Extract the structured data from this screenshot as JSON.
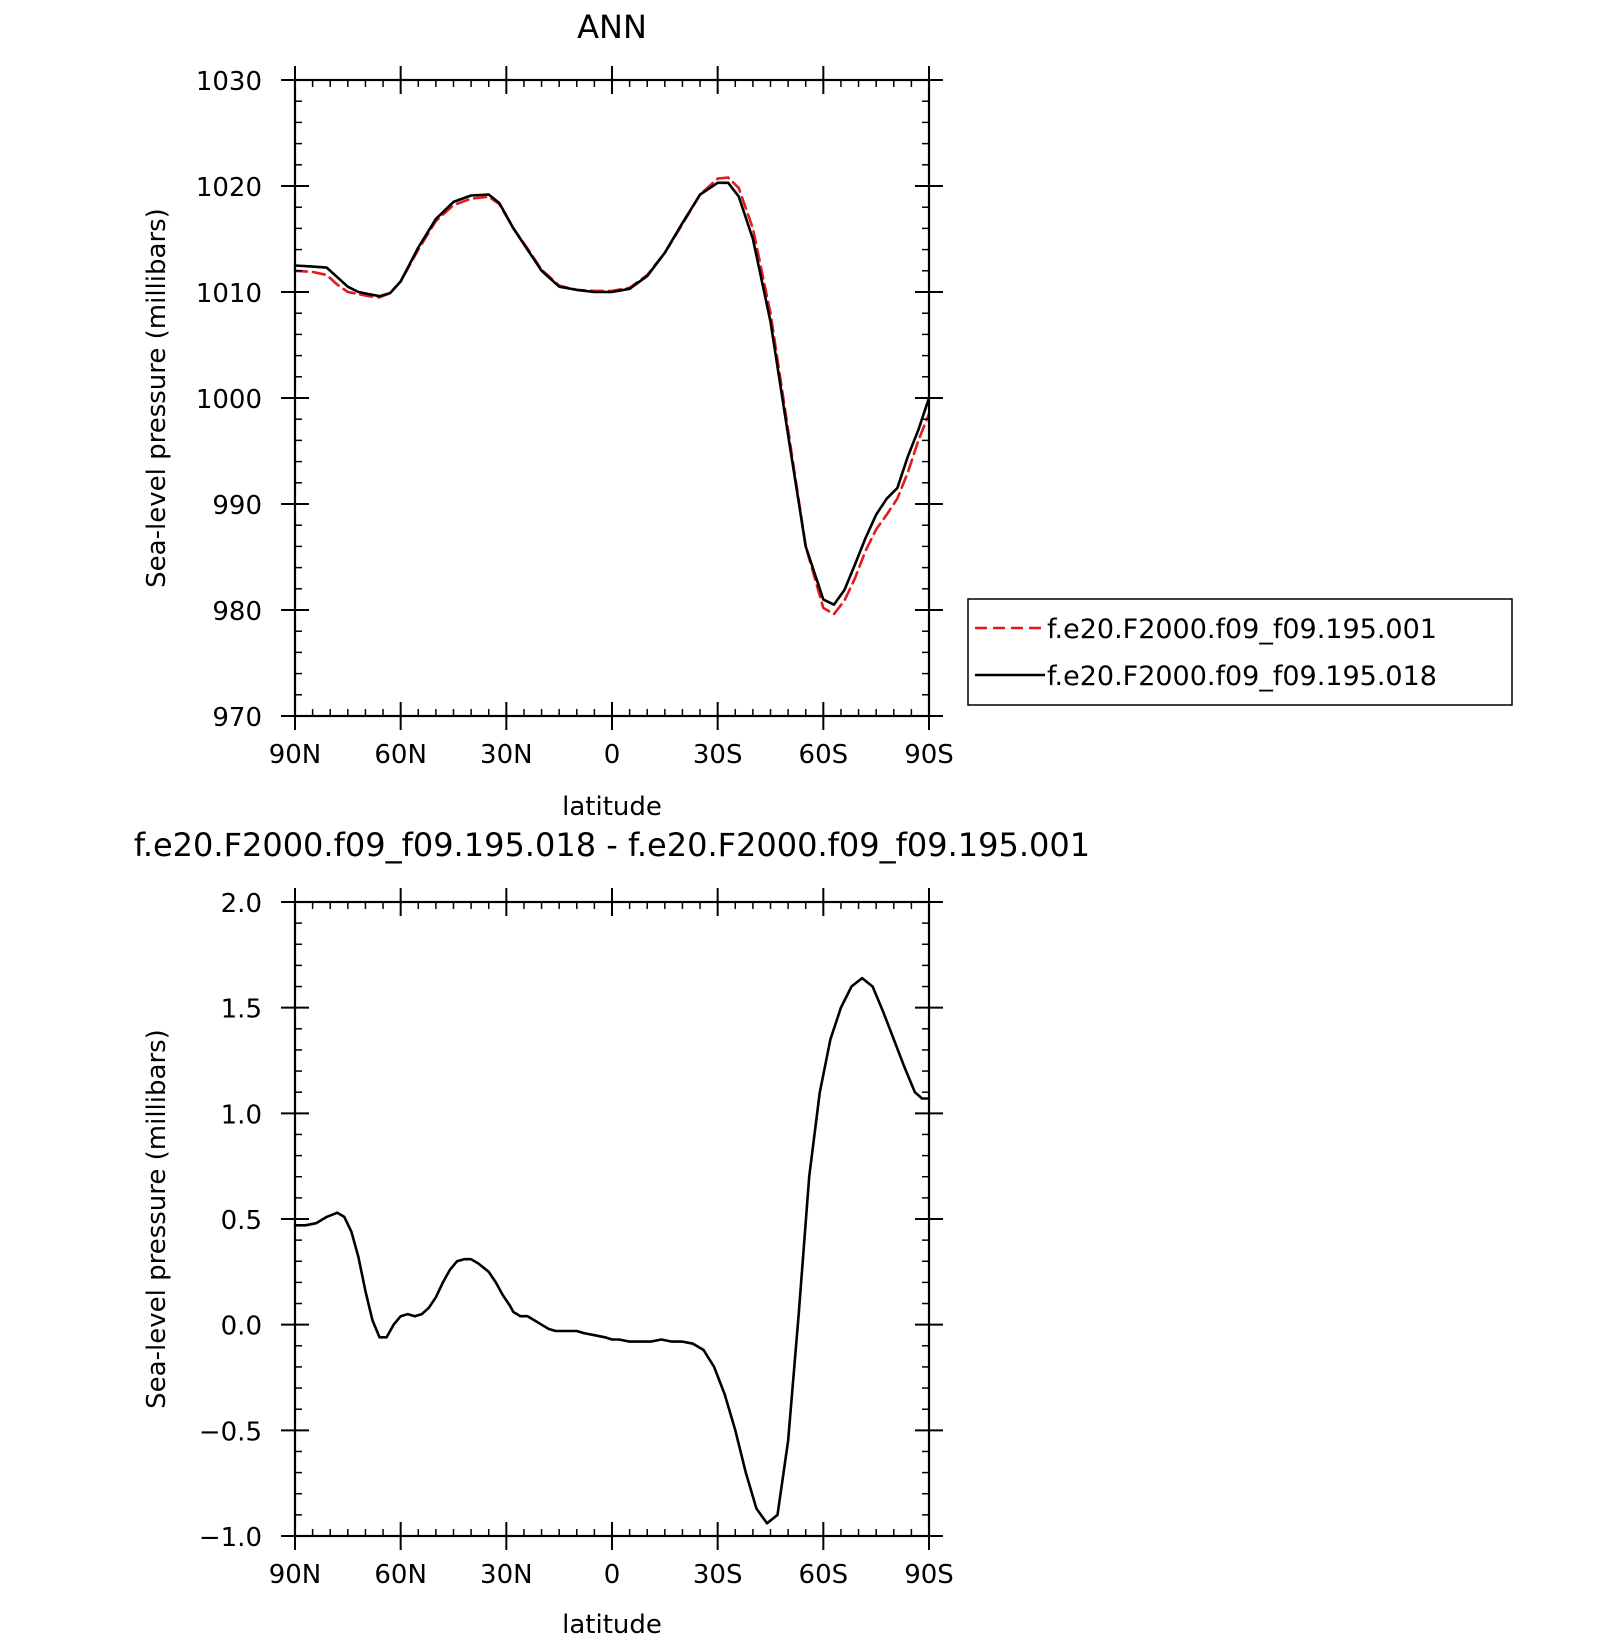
{
  "chart_data": [
    {
      "type": "line",
      "title": "ANN",
      "xlabel": "latitude",
      "ylabel": "Sea-level pressure (millibars)",
      "xlim": [
        90,
        -90
      ],
      "ylim": [
        970,
        1030
      ],
      "xticks": [
        90,
        60,
        30,
        0,
        -30,
        -60,
        -90
      ],
      "xtick_labels": [
        "90N",
        "60N",
        "30N",
        "0",
        "30S",
        "60S",
        "90S"
      ],
      "yticks": [
        970,
        980,
        990,
        1000,
        1010,
        1020,
        1030
      ],
      "ytick_labels": [
        "970",
        "980",
        "990",
        "1000",
        "1010",
        "1020",
        "1030"
      ],
      "grid": false,
      "legend": "right",
      "series": [
        {
          "name": "f.e20.F2000.f09_f09.195.001",
          "color": "#e41a1c",
          "style": "dashed",
          "x": [
            90,
            85,
            81,
            78,
            75,
            72,
            69,
            66,
            63,
            60,
            55,
            50,
            45,
            40,
            35,
            32,
            28,
            24,
            20,
            15,
            10,
            5,
            0,
            -5,
            -10,
            -15,
            -20,
            -25,
            -30,
            -33,
            -36,
            -40,
            -45,
            -50,
            -55,
            -60,
            -63,
            -66,
            -69,
            -72,
            -75,
            -78,
            -81,
            -84,
            -87,
            -90
          ],
          "values": [
            1012,
            1011.9,
            1011.6,
            1010.7,
            1010.0,
            1009.8,
            1009.6,
            1009.5,
            1009.9,
            1011.0,
            1014.0,
            1016.7,
            1018.2,
            1018.8,
            1019.0,
            1018.3,
            1016.0,
            1014.1,
            1012.1,
            1010.6,
            1010.2,
            1010.1,
            1010.1,
            1010.4,
            1011.6,
            1013.7,
            1016.4,
            1019.2,
            1020.7,
            1020.8,
            1019.8,
            1016.0,
            1008.0,
            997.0,
            986.0,
            980.2,
            979.6,
            980.9,
            983.0,
            985.6,
            987.6,
            989.0,
            990.5,
            993.0,
            996.0,
            998.5
          ]
        },
        {
          "name": "f.e20.F2000.f09_f09.195.018",
          "color": "#000000",
          "style": "solid",
          "x": [
            90,
            85,
            81,
            78,
            75,
            72,
            69,
            66,
            63,
            60,
            55,
            50,
            45,
            40,
            35,
            32,
            28,
            24,
            20,
            15,
            10,
            5,
            0,
            -5,
            -10,
            -15,
            -20,
            -25,
            -30,
            -33,
            -36,
            -40,
            -45,
            -50,
            -55,
            -60,
            -63,
            -66,
            -69,
            -72,
            -75,
            -78,
            -81,
            -84,
            -87,
            -90
          ],
          "values": [
            1012.5,
            1012.4,
            1012.3,
            1011.4,
            1010.5,
            1010.0,
            1009.8,
            1009.6,
            1009.9,
            1011.0,
            1014.2,
            1016.9,
            1018.5,
            1019.1,
            1019.2,
            1018.4,
            1016.0,
            1014.0,
            1012.0,
            1010.5,
            1010.2,
            1010.0,
            1010.0,
            1010.3,
            1011.5,
            1013.7,
            1016.5,
            1019.2,
            1020.3,
            1020.3,
            1019.0,
            1015.0,
            1007.2,
            996.5,
            986.0,
            981.0,
            980.5,
            981.9,
            984.3,
            986.8,
            989.0,
            990.5,
            991.5,
            994.5,
            997.0,
            1000.0
          ]
        }
      ]
    },
    {
      "type": "line",
      "title": "f.e20.F2000.f09_f09.195.018 - f.e20.F2000.f09_f09.195.001",
      "xlabel": "latitude",
      "ylabel": "Sea-level pressure (millibars)",
      "xlim": [
        90,
        -90
      ],
      "ylim": [
        -1.0,
        2.0
      ],
      "xticks": [
        90,
        60,
        30,
        0,
        -30,
        -60,
        -90
      ],
      "xtick_labels": [
        "90N",
        "60N",
        "30N",
        "0",
        "30S",
        "60S",
        "90S"
      ],
      "yticks": [
        -1.0,
        -0.5,
        0.0,
        0.5,
        1.0,
        1.5,
        2.0
      ],
      "ytick_labels": [
        "−1.0",
        "−0.5",
        "0.0",
        "0.5",
        "1.0",
        "1.5",
        "2.0"
      ],
      "grid": false,
      "series": [
        {
          "color": "#000000",
          "style": "solid",
          "x": [
            90,
            87,
            84,
            81,
            78,
            76,
            74,
            72,
            70,
            68,
            66,
            64,
            62,
            60,
            58,
            56,
            54,
            52,
            50,
            48,
            46,
            44,
            42,
            40,
            38,
            35,
            33,
            31,
            29,
            28,
            27,
            26,
            24,
            22,
            20,
            18,
            16,
            14,
            12,
            10,
            8,
            5,
            2,
            0,
            -2,
            -5,
            -8,
            -11,
            -14,
            -17,
            -20,
            -23,
            -26,
            -29,
            -32,
            -35,
            -38,
            -41,
            -44,
            -47,
            -50,
            -53,
            -56,
            -59,
            -62,
            -65,
            -68,
            -71,
            -74,
            -77,
            -80,
            -83,
            -86,
            -88,
            -90
          ],
          "values": [
            0.47,
            0.47,
            0.48,
            0.51,
            0.53,
            0.51,
            0.44,
            0.32,
            0.16,
            0.02,
            -0.06,
            -0.06,
            0.0,
            0.04,
            0.05,
            0.04,
            0.05,
            0.08,
            0.13,
            0.2,
            0.26,
            0.3,
            0.31,
            0.31,
            0.29,
            0.25,
            0.2,
            0.14,
            0.09,
            0.06,
            0.05,
            0.04,
            0.04,
            0.02,
            0.0,
            -0.02,
            -0.03,
            -0.03,
            -0.03,
            -0.03,
            -0.04,
            -0.05,
            -0.06,
            -0.07,
            -0.07,
            -0.08,
            -0.08,
            -0.08,
            -0.07,
            -0.08,
            -0.08,
            -0.09,
            -0.12,
            -0.2,
            -0.33,
            -0.5,
            -0.7,
            -0.87,
            -0.94,
            -0.9,
            -0.55,
            0.05,
            0.7,
            1.1,
            1.35,
            1.5,
            1.6,
            1.64,
            1.6,
            1.48,
            1.35,
            1.22,
            1.1,
            1.07,
            1.07
          ]
        }
      ]
    }
  ]
}
